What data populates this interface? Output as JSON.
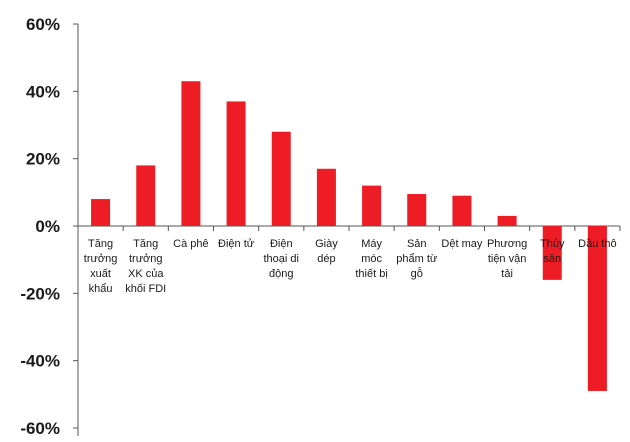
{
  "chart_data": {
    "type": "bar",
    "title": "",
    "xlabel": "",
    "ylabel": "",
    "ylim": [
      -60,
      60
    ],
    "yticks": [
      60,
      40,
      20,
      0,
      -20,
      -40,
      -60
    ],
    "ytick_labels": [
      "60%",
      "40%",
      "20%",
      "0%",
      "-20%",
      "-40%",
      "-60%"
    ],
    "grid": false,
    "legend": "none",
    "bar_color": "#ee1c25",
    "categories": [
      "Tăng trưởng xuất khẩu",
      "Tăng trưởng XK của khối FDI",
      "Cà phê",
      "Điện tử",
      "Điện thoại di động",
      "Giày dép",
      "Máy móc thiết bị",
      "Sản phẩm từ gỗ",
      "Dệt may",
      "Phương tiện vận tải",
      "Thủy sản",
      "Dầu thô"
    ],
    "category_lines": [
      [
        "Tăng",
        "trưởng",
        "xuất",
        "khẩu"
      ],
      [
        "Tăng",
        "trưởng",
        "XK của",
        "khối FDI"
      ],
      [
        "Cà phê"
      ],
      [
        "Điện tử"
      ],
      [
        "Điện",
        "thoại di",
        "động"
      ],
      [
        "Giày",
        "dép"
      ],
      [
        "Máy",
        "móc",
        "thiết bị"
      ],
      [
        "Sản",
        "phẩm từ",
        "gỗ"
      ],
      [
        "Dệt may"
      ],
      [
        "Phương",
        "tiện vận",
        "tải"
      ],
      [
        "Thủy",
        "sản"
      ],
      [
        "Dầu thô"
      ]
    ],
    "values": [
      8,
      18,
      43,
      37,
      28,
      17,
      12,
      9.5,
      9,
      3,
      -16,
      -49
    ]
  }
}
